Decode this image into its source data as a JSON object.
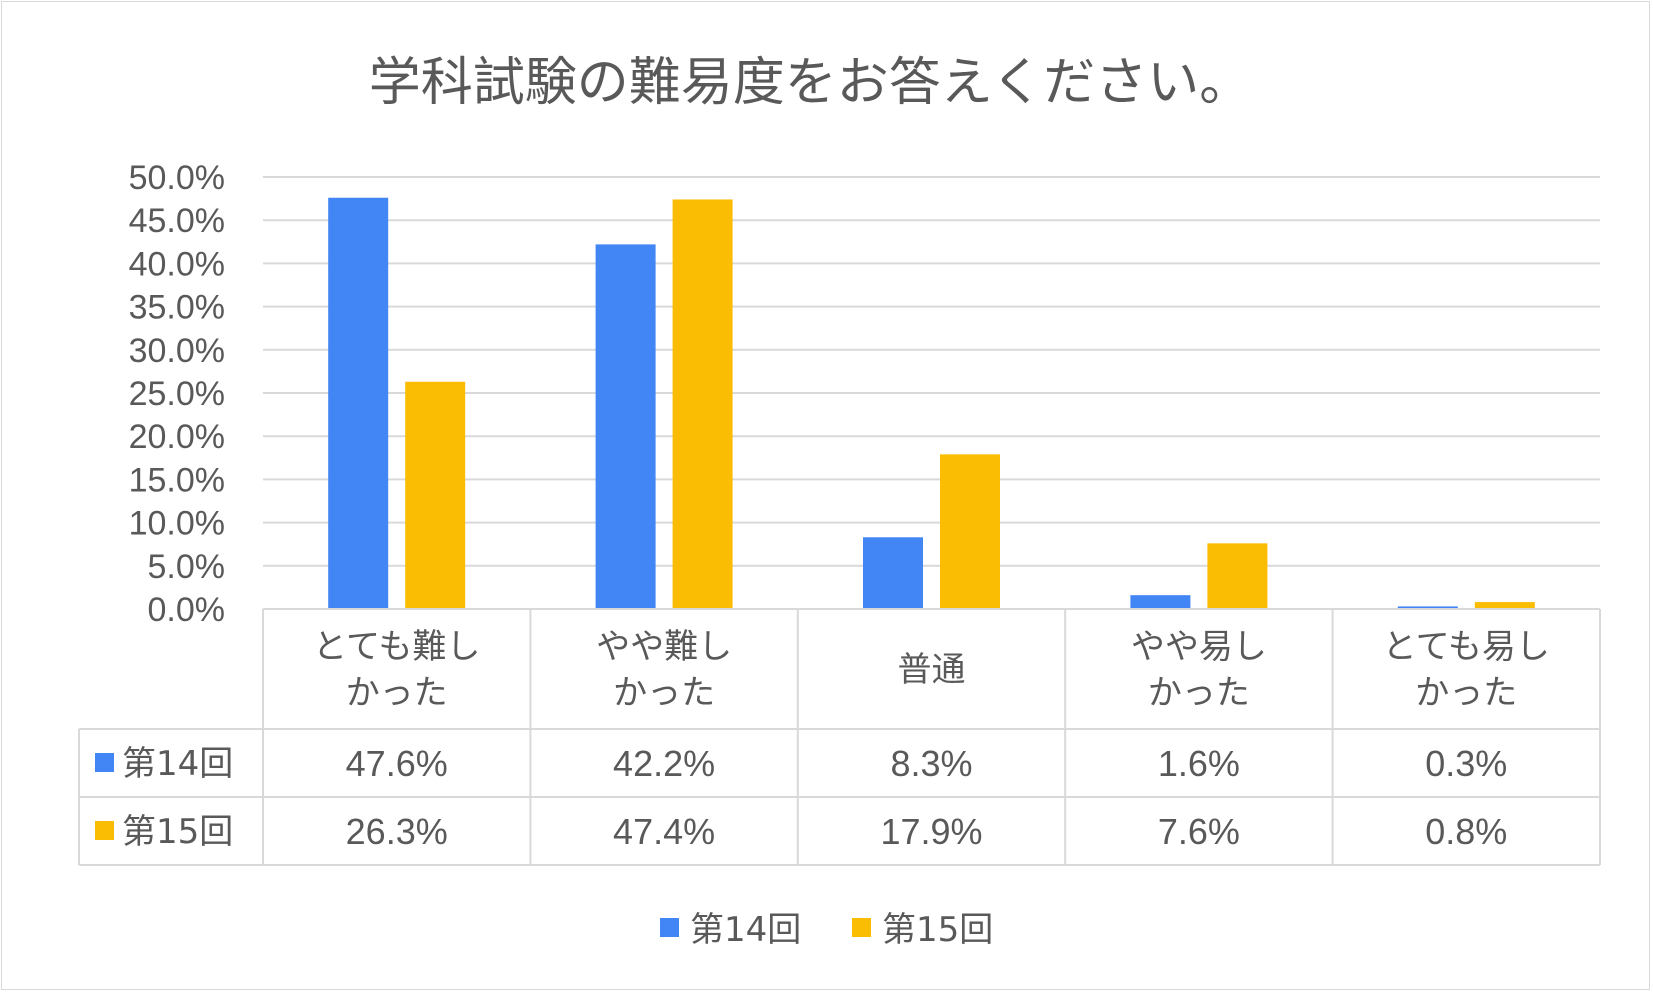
{
  "chart_data": {
    "type": "bar",
    "title": "学科試験の難易度をお答えください。",
    "categories": [
      [
        "とても難し",
        "かった"
      ],
      [
        "やや難し",
        "かった"
      ],
      [
        "普通"
      ],
      [
        "やや易し",
        "かった"
      ],
      [
        "とても易し",
        "かった"
      ]
    ],
    "series": [
      {
        "name": "第14回",
        "color": "#4285f4",
        "values": [
          47.6,
          42.2,
          8.3,
          1.6,
          0.3
        ],
        "labels": [
          "47.6%",
          "42.2%",
          "8.3%",
          "1.6%",
          "0.3%"
        ]
      },
      {
        "name": "第15回",
        "color": "#fbbc04",
        "values": [
          26.3,
          47.4,
          17.9,
          7.6,
          0.8
        ],
        "labels": [
          "26.3%",
          "47.4%",
          "17.9%",
          "7.6%",
          "0.8%"
        ]
      }
    ],
    "ylim": [
      0,
      50
    ],
    "yticks": [
      "0.0%",
      "5.0%",
      "10.0%",
      "15.0%",
      "20.0%",
      "25.0%",
      "30.0%",
      "35.0%",
      "40.0%",
      "45.0%",
      "50.0%"
    ],
    "grid": true,
    "data_table": true,
    "legend_position": "bottom"
  }
}
